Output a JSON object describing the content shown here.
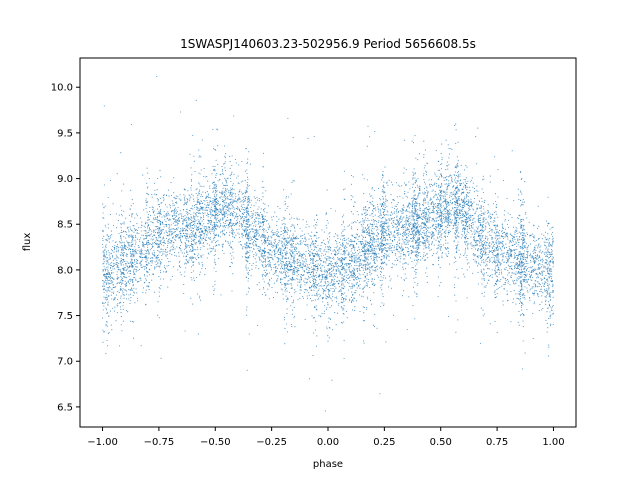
{
  "chart_data": {
    "type": "scatter",
    "title": "1SWASPJ140603.23-502956.9 Period 5656608.5s",
    "xlabel": "phase",
    "ylabel": "flux",
    "xlim": [
      -1.1,
      1.1
    ],
    "ylim": [
      6.28,
      10.32
    ],
    "x_ticks": [
      -1.0,
      -0.75,
      -0.5,
      -0.25,
      0.0,
      0.25,
      0.5,
      0.75,
      1.0
    ],
    "x_tick_labels": [
      "−1.00",
      "−0.75",
      "−0.50",
      "−0.25",
      "0.00",
      "0.25",
      "0.50",
      "0.75",
      "1.00"
    ],
    "y_ticks": [
      6.5,
      7.0,
      7.5,
      8.0,
      8.5,
      9.0,
      9.5,
      10.0
    ],
    "y_tick_labels": [
      "6.5",
      "7.0",
      "7.5",
      "8.0",
      "8.5",
      "9.0",
      "9.5",
      "10.0"
    ],
    "grid": false,
    "marker_color": "#1f77b4",
    "series": [
      {
        "phase_profile": [
          [
            -1.0,
            8.0
          ],
          [
            -0.95,
            8.0
          ],
          [
            -0.9,
            8.1
          ],
          [
            -0.85,
            8.15
          ],
          [
            -0.8,
            8.25
          ],
          [
            -0.75,
            8.4
          ],
          [
            -0.7,
            8.45
          ],
          [
            -0.65,
            8.45
          ],
          [
            -0.6,
            8.5
          ],
          [
            -0.55,
            8.55
          ],
          [
            -0.5,
            8.6
          ],
          [
            -0.45,
            8.7
          ],
          [
            -0.4,
            8.65
          ],
          [
            -0.35,
            8.45
          ],
          [
            -0.3,
            8.35
          ],
          [
            -0.25,
            8.2
          ],
          [
            -0.2,
            8.15
          ],
          [
            -0.15,
            8.1
          ],
          [
            -0.1,
            8.05
          ],
          [
            -0.05,
            8.0
          ],
          [
            0.0,
            7.95
          ],
          [
            0.05,
            8.0
          ],
          [
            0.1,
            8.05
          ],
          [
            0.15,
            8.15
          ],
          [
            0.2,
            8.25
          ],
          [
            0.25,
            8.4
          ],
          [
            0.3,
            8.45
          ],
          [
            0.35,
            8.45
          ],
          [
            0.4,
            8.5
          ],
          [
            0.45,
            8.55
          ],
          [
            0.5,
            8.6
          ],
          [
            0.55,
            8.7
          ],
          [
            0.6,
            8.65
          ],
          [
            0.65,
            8.45
          ],
          [
            0.7,
            8.35
          ],
          [
            0.75,
            8.2
          ],
          [
            0.8,
            8.15
          ],
          [
            0.85,
            8.1
          ],
          [
            0.9,
            8.05
          ],
          [
            0.95,
            8.0
          ],
          [
            1.0,
            7.95
          ]
        ],
        "scatter_sd": 0.22
      }
    ]
  }
}
